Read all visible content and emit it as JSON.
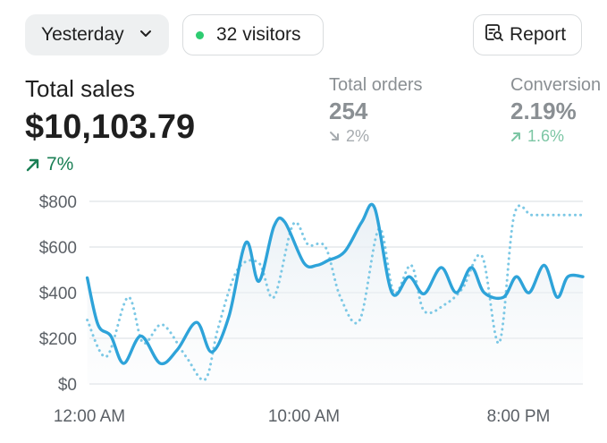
{
  "header": {
    "date_range": "Yesterday",
    "visitors_label": "32 visitors",
    "visitors_dot_color": "#2ecc71",
    "report_label": "Report"
  },
  "metrics": {
    "total_sales": {
      "label": "Total sales",
      "value": "$10,103.79",
      "delta": "7%",
      "direction": "up"
    },
    "total_orders": {
      "label": "Total orders",
      "value": "254",
      "delta": "2%",
      "direction": "down"
    },
    "conversion": {
      "label": "Conversion",
      "value": "2.19%",
      "delta": "1.6%",
      "direction": "up"
    }
  },
  "chart_data": {
    "type": "line",
    "title": "",
    "xlabel": "",
    "ylabel": "",
    "ylim": [
      0,
      800
    ],
    "y_ticks": [
      {
        "value": 0,
        "label": "$0"
      },
      {
        "value": 200,
        "label": "$200"
      },
      {
        "value": 400,
        "label": "$400"
      },
      {
        "value": 600,
        "label": "$600"
      },
      {
        "value": 800,
        "label": "$800"
      }
    ],
    "x_ticks": [
      {
        "x": 0,
        "label": "12:00 AM"
      },
      {
        "x": 10,
        "label": "10:00 AM"
      },
      {
        "x": 20,
        "label": "8:00 PM"
      }
    ],
    "xlim": [
      0,
      23
    ],
    "grid": true,
    "series": [
      {
        "style": "solid",
        "color": "#2ea3d9",
        "x": [
          -0.1,
          0.4,
          1.0,
          1.6,
          2.4,
          3.3,
          4.1,
          5.0,
          5.7,
          6.5,
          7.3,
          7.9,
          8.6,
          9.1,
          10.0,
          10.6,
          11.1,
          11.9,
          12.7,
          13.3,
          14.1,
          14.9,
          15.6,
          16.4,
          17.1,
          17.8,
          18.4,
          19.3,
          19.9,
          20.5,
          21.2,
          21.8,
          22.3,
          23.0
        ],
        "values": [
          465,
          260,
          210,
          90,
          210,
          90,
          150,
          270,
          140,
          295,
          620,
          450,
          690,
          710,
          530,
          520,
          540,
          580,
          710,
          770,
          400,
          470,
          395,
          510,
          400,
          510,
          400,
          380,
          470,
          400,
          520,
          380,
          470,
          470
        ]
      },
      {
        "style": "dotted",
        "color": "#7cc8e5",
        "x": [
          -0.1,
          0.8,
          1.8,
          2.5,
          3.4,
          4.5,
          5.4,
          6.0,
          6.9,
          7.9,
          8.6,
          9.5,
          10.2,
          11.0,
          11.7,
          12.6,
          13.5,
          14.2,
          15.0,
          15.6,
          16.6,
          17.4,
          18.3,
          19.1,
          19.8,
          20.6,
          21.3,
          22.0,
          22.7,
          23.0
        ],
        "values": [
          280,
          120,
          380,
          180,
          260,
          120,
          20,
          245,
          500,
          530,
          380,
          700,
          610,
          600,
          380,
          280,
          680,
          400,
          520,
          320,
          350,
          420,
          560,
          180,
          740,
          740,
          740,
          740,
          740,
          740
        ]
      }
    ]
  }
}
